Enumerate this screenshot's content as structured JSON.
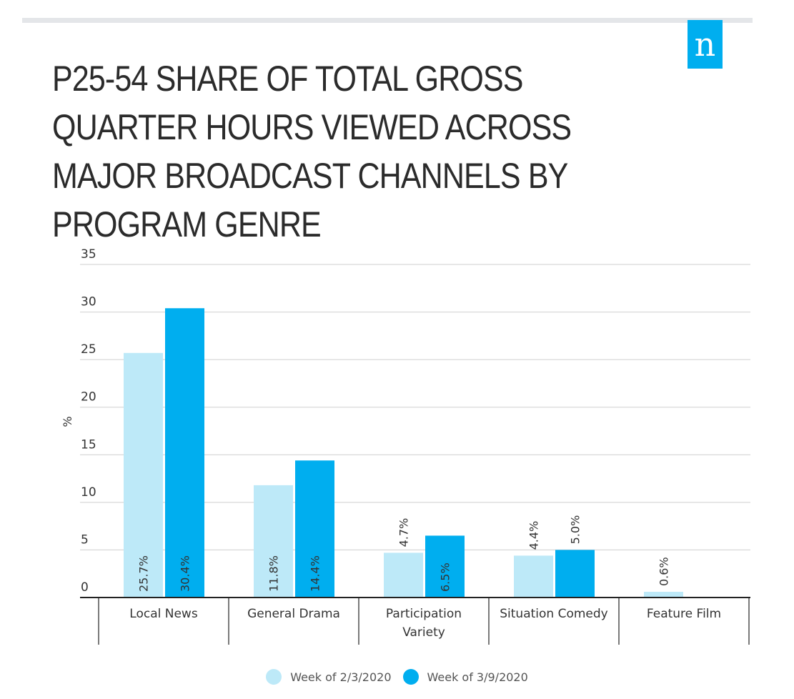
{
  "header": {
    "logo_letter": "n",
    "title": "P25-54 SHARE OF TOTAL GROSS QUARTER HOURS VIEWED ACROSS MAJOR BROADCAST CHANNELS BY PROGRAM GENRE"
  },
  "colors": {
    "series1": "#bde9f8",
    "series2": "#00aeef",
    "brand": "#00aeef",
    "grid": "#cfcfcf",
    "axis": "#222222",
    "text": "#333333"
  },
  "chart_data": {
    "type": "bar",
    "title": "P25-54 SHARE OF TOTAL GROSS QUARTER HOURS VIEWED ACROSS MAJOR BROADCAST CHANNELS BY PROGRAM GENRE",
    "xlabel": "",
    "ylabel": "%",
    "ylim": [
      0,
      35
    ],
    "yticks": [
      0,
      5,
      10,
      15,
      20,
      25,
      30,
      35
    ],
    "grid": true,
    "legend_position": "bottom",
    "categories": [
      [
        "Local News"
      ],
      [
        "General Drama"
      ],
      [
        "Participation",
        "Variety"
      ],
      [
        "Situation Comedy"
      ],
      [
        "Feature Film"
      ]
    ],
    "series": [
      {
        "name": "Week of 2/3/2020",
        "values": [
          25.7,
          11.8,
          4.7,
          4.4,
          0.6
        ],
        "labels": [
          "25.7%",
          "11.8%",
          "4.7%",
          "4.4%",
          "0.6%"
        ]
      },
      {
        "name": "Week of 3/9/2020",
        "values": [
          30.4,
          14.4,
          6.5,
          5.0,
          null
        ],
        "labels": [
          "30.4%",
          "14.4%",
          "6.5%",
          "5.0%",
          null
        ]
      }
    ]
  }
}
